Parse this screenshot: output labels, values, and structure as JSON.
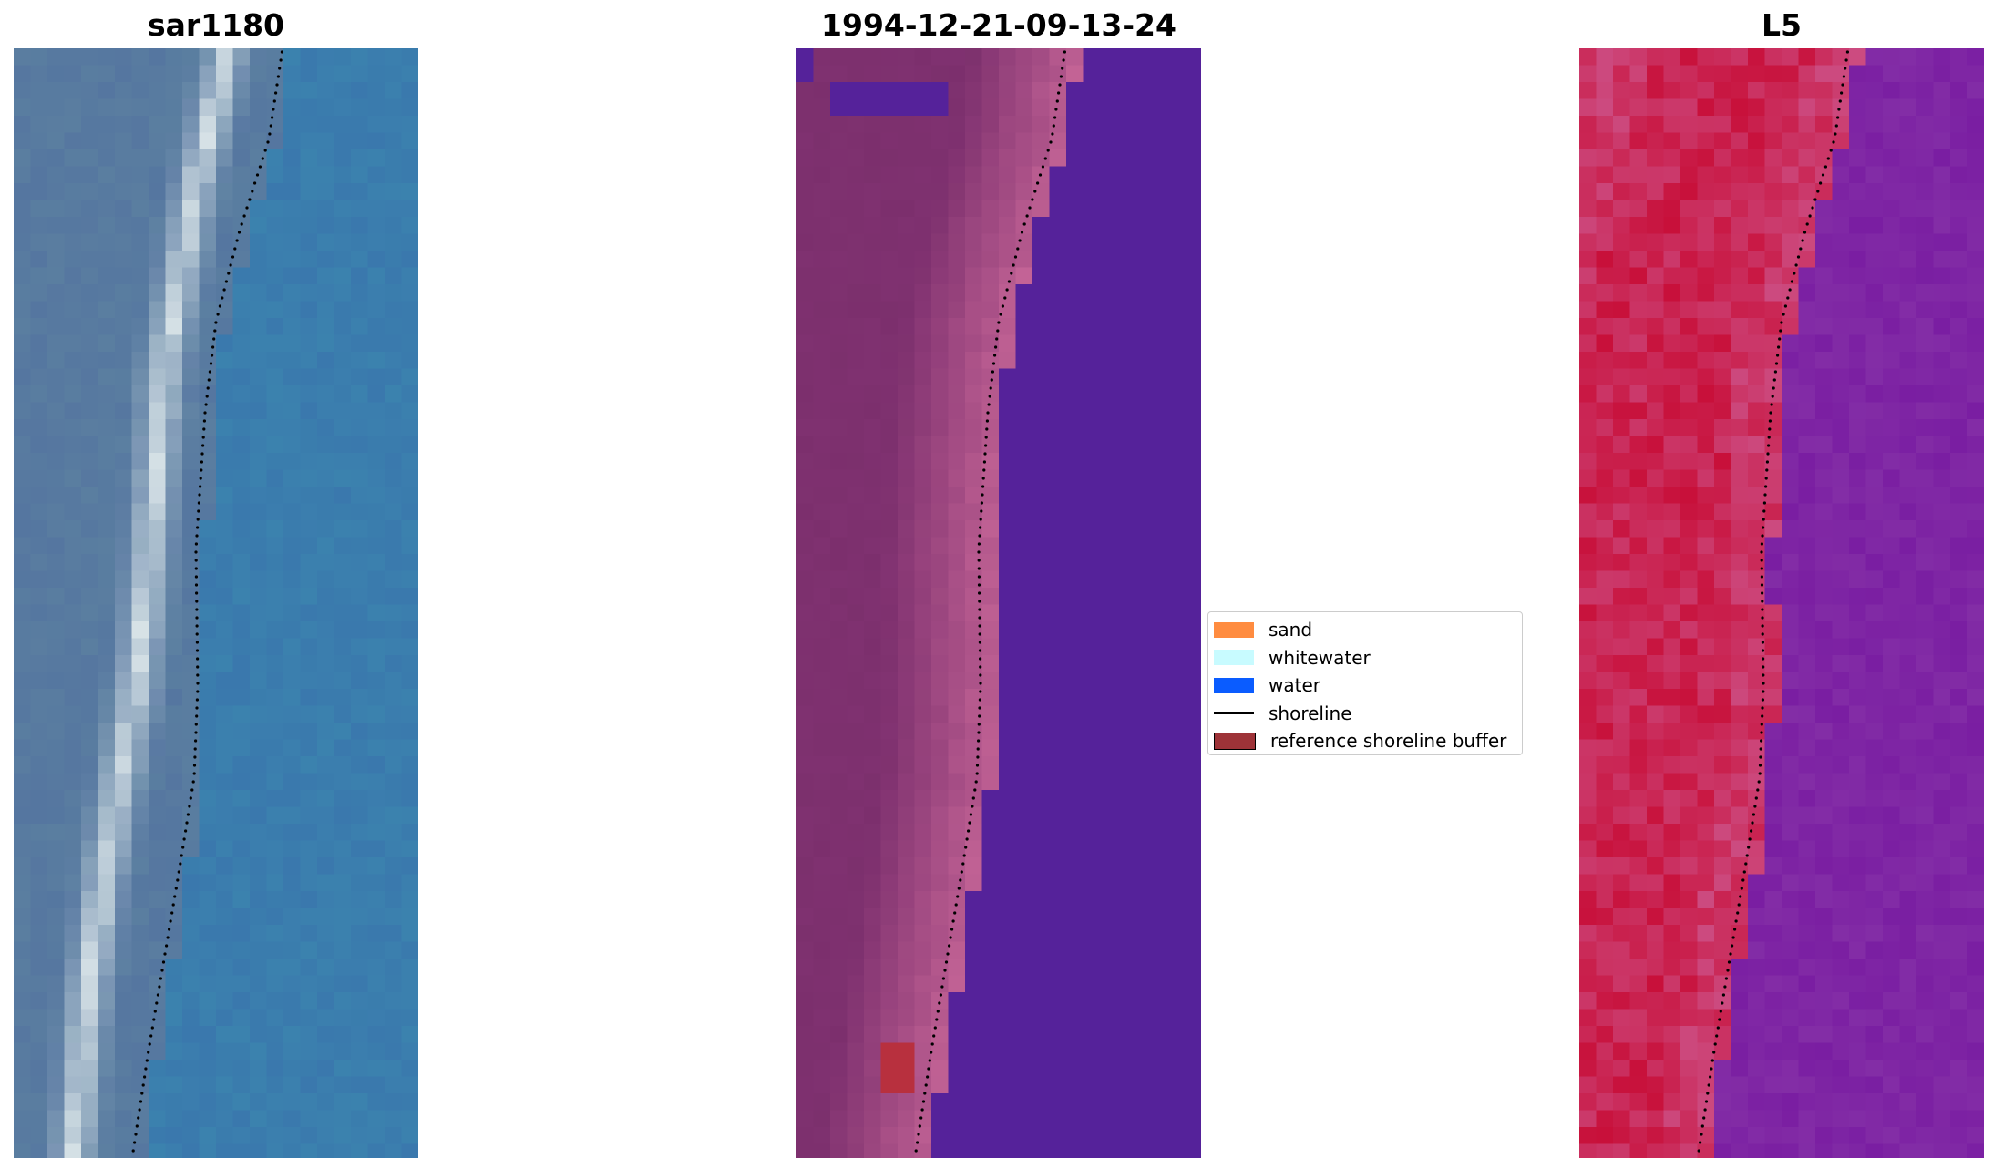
{
  "panels": [
    {
      "id": "rgb",
      "title": "sar1180"
    },
    {
      "id": "classified",
      "title": "1994-12-21-09-13-24"
    },
    {
      "id": "index",
      "title": "L5"
    }
  ],
  "legend": {
    "items": [
      {
        "label": "sand",
        "color": "#ff8c40",
        "kind": "patch"
      },
      {
        "label": "whitewater",
        "color": "#c8fbff",
        "kind": "patch"
      },
      {
        "label": "water",
        "color": "#0a5cff",
        "kind": "patch"
      },
      {
        "label": "shoreline",
        "color": "#000000",
        "kind": "line"
      },
      {
        "label": "reference shoreline buffer",
        "color": "#9e3338",
        "kind": "patch"
      }
    ]
  },
  "colors": {
    "rgb_water": "#3a78ad",
    "rgb_beach": "#e8f0f0",
    "rgb_land": "#5a7ea0",
    "class_water": "#55229a",
    "class_land": "#7f3170",
    "class_sand_blend": "#c46496",
    "class_buffer": "#b8303e",
    "index_land": "#c8103a",
    "index_water": "#7a1ea2",
    "shoreline": "#000000"
  }
}
